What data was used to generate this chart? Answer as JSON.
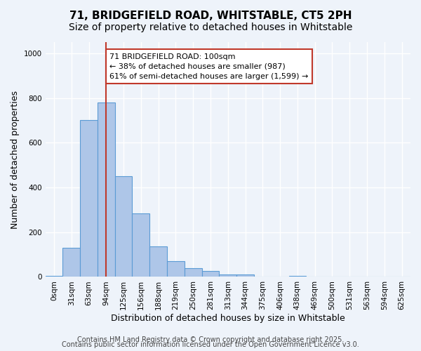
{
  "title_line1": "71, BRIDGEFIELD ROAD, WHITSTABLE, CT5 2PH",
  "title_line2": "Size of property relative to detached houses in Whitstable",
  "xlabel": "Distribution of detached houses by size in Whitstable",
  "ylabel": "Number of detached properties",
  "bin_labels": [
    "0sqm",
    "31sqm",
    "63sqm",
    "94sqm",
    "125sqm",
    "156sqm",
    "188sqm",
    "219sqm",
    "250sqm",
    "281sqm",
    "313sqm",
    "344sqm",
    "375sqm",
    "406sqm",
    "438sqm",
    "469sqm",
    "500sqm",
    "531sqm",
    "563sqm",
    "594sqm",
    "625sqm"
  ],
  "bar_heights": [
    5,
    130,
    700,
    780,
    450,
    285,
    135,
    70,
    40,
    28,
    12,
    10,
    0,
    0,
    5,
    0,
    0,
    0,
    0,
    0,
    0
  ],
  "bar_color": "#aec6e8",
  "bar_edge_color": "#5b9bd5",
  "vline_x_index": 3,
  "vline_color": "#c0392b",
  "ylim": [
    0,
    1050
  ],
  "annotation_text": "71 BRIDGEFIELD ROAD: 100sqm\n← 38% of detached houses are smaller (987)\n61% of semi-detached houses are larger (1,599) →",
  "annotation_box_color": "#ffffff",
  "annotation_box_edge": "#c0392b",
  "footer_line1": "Contains HM Land Registry data © Crown copyright and database right 2025.",
  "footer_line2": "Contains public sector information licensed under the Open Government Licence v3.0.",
  "bg_color": "#eef3fa",
  "plot_bg_color": "#eef3fa",
  "grid_color": "#ffffff",
  "title_fontsize": 11,
  "subtitle_fontsize": 10,
  "axis_label_fontsize": 9,
  "tick_fontsize": 7.5,
  "footer_fontsize": 7
}
